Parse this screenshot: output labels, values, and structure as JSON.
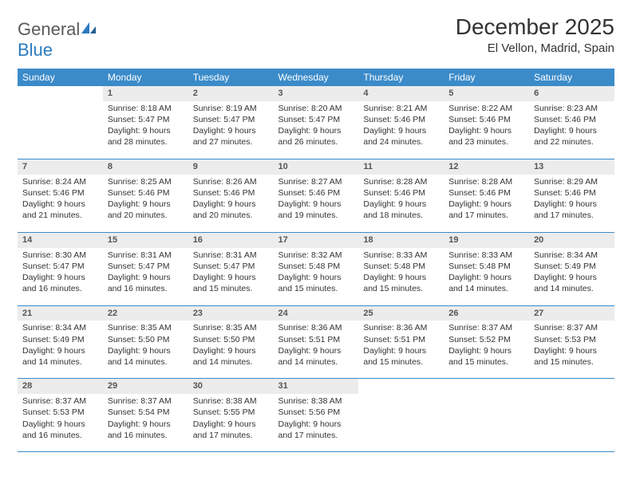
{
  "logo": {
    "text1": "General",
    "text2": "Blue"
  },
  "title": "December 2025",
  "location": "El Vellon, Madrid, Spain",
  "colors": {
    "header_bg": "#3b8bc9",
    "header_text": "#ffffff",
    "daynum_bg": "#ececec",
    "row_border": "#3b8bc9",
    "logo_gray": "#5a5a5a",
    "logo_blue": "#2b7bbf"
  },
  "weekdays": [
    "Sunday",
    "Monday",
    "Tuesday",
    "Wednesday",
    "Thursday",
    "Friday",
    "Saturday"
  ],
  "grid": {
    "start_weekday": 1,
    "days_in_month": 31
  },
  "days": {
    "1": {
      "sunrise": "8:18 AM",
      "sunset": "5:47 PM",
      "daylight": "9 hours and 28 minutes."
    },
    "2": {
      "sunrise": "8:19 AM",
      "sunset": "5:47 PM",
      "daylight": "9 hours and 27 minutes."
    },
    "3": {
      "sunrise": "8:20 AM",
      "sunset": "5:47 PM",
      "daylight": "9 hours and 26 minutes."
    },
    "4": {
      "sunrise": "8:21 AM",
      "sunset": "5:46 PM",
      "daylight": "9 hours and 24 minutes."
    },
    "5": {
      "sunrise": "8:22 AM",
      "sunset": "5:46 PM",
      "daylight": "9 hours and 23 minutes."
    },
    "6": {
      "sunrise": "8:23 AM",
      "sunset": "5:46 PM",
      "daylight": "9 hours and 22 minutes."
    },
    "7": {
      "sunrise": "8:24 AM",
      "sunset": "5:46 PM",
      "daylight": "9 hours and 21 minutes."
    },
    "8": {
      "sunrise": "8:25 AM",
      "sunset": "5:46 PM",
      "daylight": "9 hours and 20 minutes."
    },
    "9": {
      "sunrise": "8:26 AM",
      "sunset": "5:46 PM",
      "daylight": "9 hours and 20 minutes."
    },
    "10": {
      "sunrise": "8:27 AM",
      "sunset": "5:46 PM",
      "daylight": "9 hours and 19 minutes."
    },
    "11": {
      "sunrise": "8:28 AM",
      "sunset": "5:46 PM",
      "daylight": "9 hours and 18 minutes."
    },
    "12": {
      "sunrise": "8:28 AM",
      "sunset": "5:46 PM",
      "daylight": "9 hours and 17 minutes."
    },
    "13": {
      "sunrise": "8:29 AM",
      "sunset": "5:46 PM",
      "daylight": "9 hours and 17 minutes."
    },
    "14": {
      "sunrise": "8:30 AM",
      "sunset": "5:47 PM",
      "daylight": "9 hours and 16 minutes."
    },
    "15": {
      "sunrise": "8:31 AM",
      "sunset": "5:47 PM",
      "daylight": "9 hours and 16 minutes."
    },
    "16": {
      "sunrise": "8:31 AM",
      "sunset": "5:47 PM",
      "daylight": "9 hours and 15 minutes."
    },
    "17": {
      "sunrise": "8:32 AM",
      "sunset": "5:48 PM",
      "daylight": "9 hours and 15 minutes."
    },
    "18": {
      "sunrise": "8:33 AM",
      "sunset": "5:48 PM",
      "daylight": "9 hours and 15 minutes."
    },
    "19": {
      "sunrise": "8:33 AM",
      "sunset": "5:48 PM",
      "daylight": "9 hours and 14 minutes."
    },
    "20": {
      "sunrise": "8:34 AM",
      "sunset": "5:49 PM",
      "daylight": "9 hours and 14 minutes."
    },
    "21": {
      "sunrise": "8:34 AM",
      "sunset": "5:49 PM",
      "daylight": "9 hours and 14 minutes."
    },
    "22": {
      "sunrise": "8:35 AM",
      "sunset": "5:50 PM",
      "daylight": "9 hours and 14 minutes."
    },
    "23": {
      "sunrise": "8:35 AM",
      "sunset": "5:50 PM",
      "daylight": "9 hours and 14 minutes."
    },
    "24": {
      "sunrise": "8:36 AM",
      "sunset": "5:51 PM",
      "daylight": "9 hours and 14 minutes."
    },
    "25": {
      "sunrise": "8:36 AM",
      "sunset": "5:51 PM",
      "daylight": "9 hours and 15 minutes."
    },
    "26": {
      "sunrise": "8:37 AM",
      "sunset": "5:52 PM",
      "daylight": "9 hours and 15 minutes."
    },
    "27": {
      "sunrise": "8:37 AM",
      "sunset": "5:53 PM",
      "daylight": "9 hours and 15 minutes."
    },
    "28": {
      "sunrise": "8:37 AM",
      "sunset": "5:53 PM",
      "daylight": "9 hours and 16 minutes."
    },
    "29": {
      "sunrise": "8:37 AM",
      "sunset": "5:54 PM",
      "daylight": "9 hours and 16 minutes."
    },
    "30": {
      "sunrise": "8:38 AM",
      "sunset": "5:55 PM",
      "daylight": "9 hours and 17 minutes."
    },
    "31": {
      "sunrise": "8:38 AM",
      "sunset": "5:56 PM",
      "daylight": "9 hours and 17 minutes."
    }
  },
  "labels": {
    "sunrise": "Sunrise:",
    "sunset": "Sunset:",
    "daylight": "Daylight:"
  }
}
